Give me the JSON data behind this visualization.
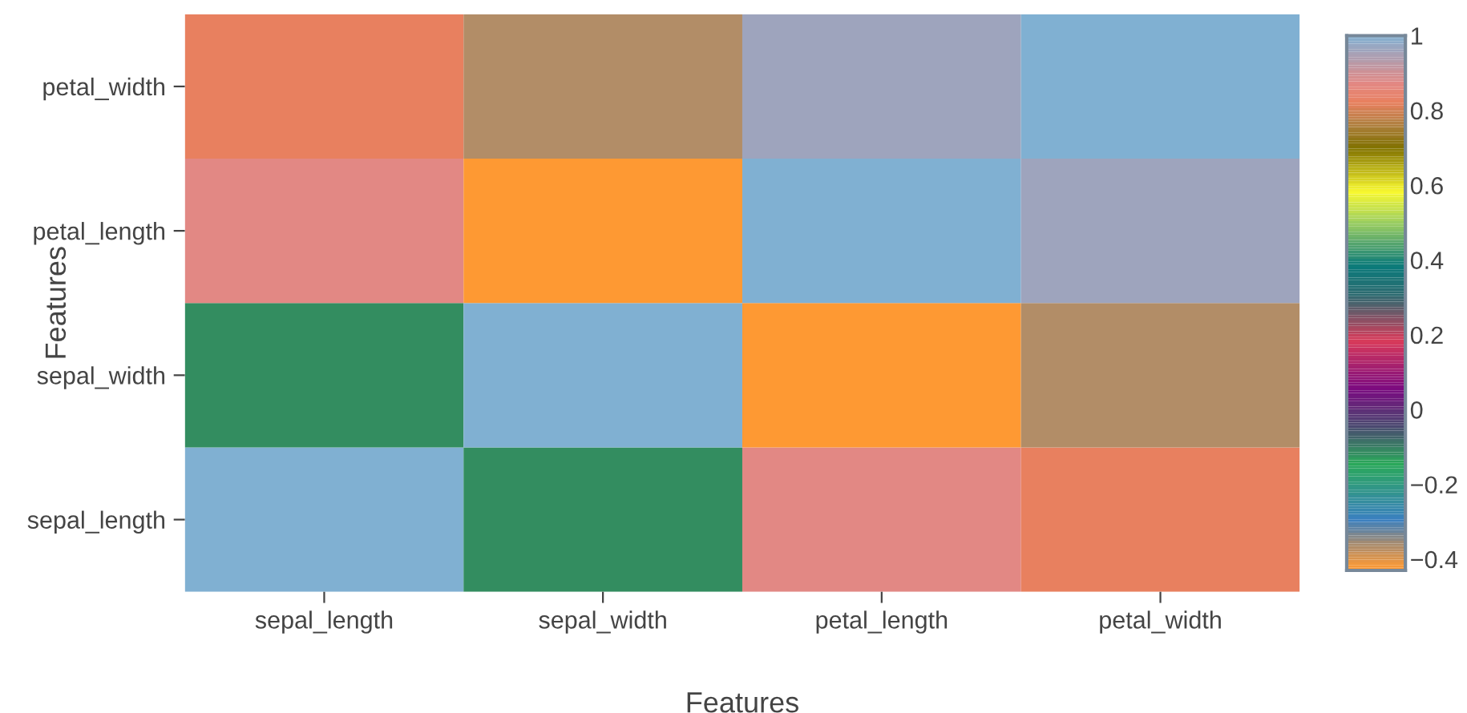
{
  "chart_data": {
    "type": "heatmap",
    "xlabel": "Features",
    "ylabel": "Features",
    "categories": [
      "sepal_length",
      "sepal_width",
      "petal_length",
      "petal_width"
    ],
    "y_categories": [
      "petal_width",
      "petal_length",
      "sepal_width",
      "sepal_length"
    ],
    "cells": [
      [
        0.82,
        -0.37,
        0.96,
        1
      ],
      [
        0.87,
        -0.43,
        1,
        0.96
      ],
      [
        -0.12,
        1,
        -0.43,
        -0.37
      ],
      [
        1,
        -0.12,
        0.87,
        0.82
      ]
    ],
    "clim": [
      -0.43,
      1
    ],
    "cticks": [
      {
        "value": -0.4,
        "label": "−0.4"
      },
      {
        "value": -0.2,
        "label": "−0.2"
      },
      0,
      0.2,
      0.4,
      0.6,
      0.8,
      1
    ]
  }
}
